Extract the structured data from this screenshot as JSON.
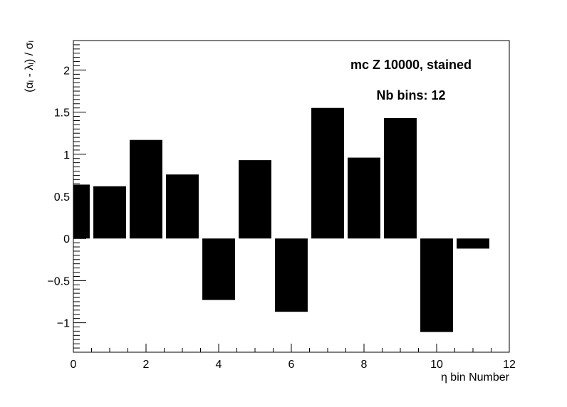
{
  "chart_data": {
    "type": "bar",
    "annotations": [
      "mc Z 10000, stained",
      "Nb bins: 12"
    ],
    "xlabel": "η bin Number",
    "ylabel": "(αᵢ - λᵢ) / σᵢ",
    "xlim": [
      0,
      12
    ],
    "ylim": [
      -1.35,
      2.35
    ],
    "x_ticks": [
      "0",
      "2",
      "4",
      "6",
      "8",
      "10",
      "12"
    ],
    "y_ticks": [
      "−1",
      "−0.5",
      "0",
      "0.5",
      "1",
      "1.5",
      "2"
    ],
    "grid": false,
    "bars": [
      {
        "x": 0.0,
        "value": 0.64
      },
      {
        "x": 1.0,
        "value": 0.62
      },
      {
        "x": 2.0,
        "value": 1.17
      },
      {
        "x": 3.0,
        "value": 0.76
      },
      {
        "x": 4.0,
        "value": -0.73
      },
      {
        "x": 5.0,
        "value": 0.93
      },
      {
        "x": 6.0,
        "value": -0.87
      },
      {
        "x": 7.0,
        "value": 1.55
      },
      {
        "x": 8.0,
        "value": 0.96
      },
      {
        "x": 9.0,
        "value": 1.43
      },
      {
        "x": 10.0,
        "value": -1.11
      },
      {
        "x": 11.0,
        "value": -0.12
      }
    ],
    "bar_color": "#000000"
  }
}
